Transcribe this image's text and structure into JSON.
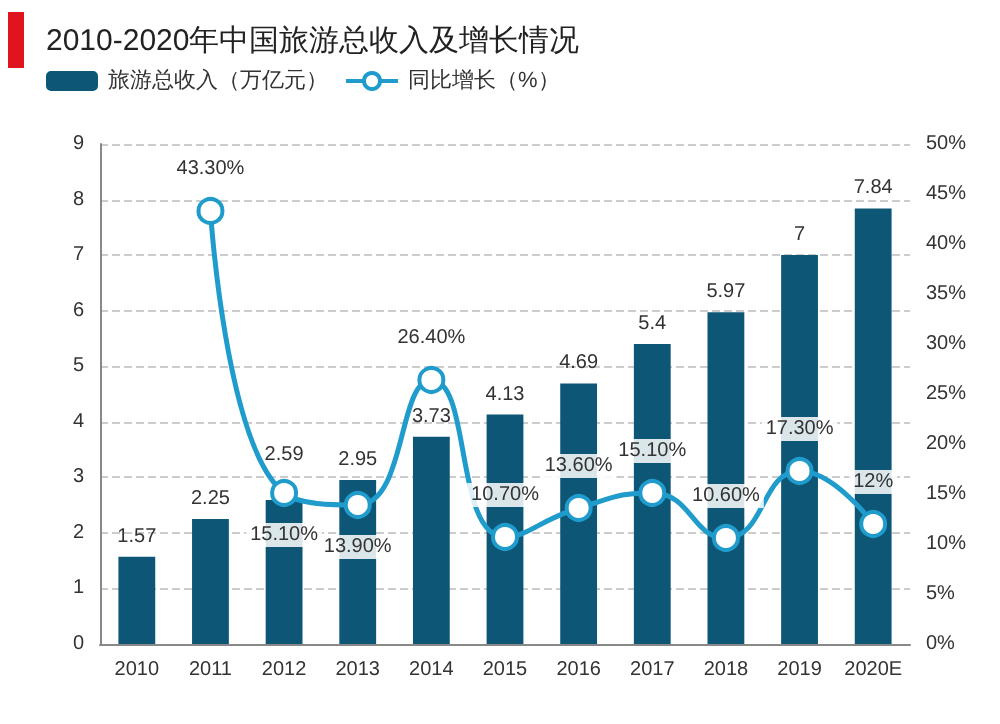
{
  "chart_data": {
    "type": "bar",
    "title": "2010-2020年中国旅游总收入及增长情况",
    "categories": [
      "2010",
      "2011",
      "2012",
      "2013",
      "2014",
      "2015",
      "2016",
      "2017",
      "2018",
      "2019",
      "2020E"
    ],
    "series": [
      {
        "name": "旅游总收入（万亿元）",
        "color": "#0d5676",
        "values": [
          1.57,
          2.25,
          2.59,
          2.95,
          3.73,
          4.13,
          4.69,
          5.4,
          5.97,
          7,
          7.84
        ],
        "value_labels": [
          "1.57",
          "2.25",
          "2.59",
          "2.95",
          "3.73",
          "4.13",
          "4.69",
          "5.4",
          "5.97",
          "7",
          "7.84"
        ]
      },
      {
        "name": "同比增长（%）",
        "type": "line",
        "axis": "y2",
        "color": "#1f9ccc",
        "marker": "circle",
        "values": [
          null,
          43.3,
          15.1,
          13.9,
          26.4,
          10.7,
          13.6,
          15.1,
          10.6,
          17.3,
          12
        ],
        "value_labels": [
          null,
          "43.30%",
          "15.10%",
          "13.90%",
          "26.40%",
          "10.70%",
          "13.60%",
          "15.10%",
          "10.60%",
          "17.30%",
          "12%"
        ]
      }
    ],
    "ylim": [
      0,
      9
    ],
    "yticks": [
      0,
      1,
      2,
      3,
      4,
      5,
      6,
      7,
      8,
      9
    ],
    "y2lim": [
      0,
      50
    ],
    "y2ticks": [
      {
        "value": 0,
        "label": "0%"
      },
      {
        "value": 5,
        "label": "5%"
      },
      {
        "value": 10,
        "label": "10%"
      },
      {
        "value": 15,
        "label": "15%"
      },
      {
        "value": 20,
        "label": "20%"
      },
      {
        "value": 25,
        "label": "25%"
      },
      {
        "value": 30,
        "label": "30%"
      },
      {
        "value": 35,
        "label": "35%"
      },
      {
        "value": 40,
        "label": "40%"
      },
      {
        "value": 45,
        "label": "45%"
      },
      {
        "value": 50,
        "label": "50%"
      }
    ],
    "grid": "y",
    "legend": "top left"
  }
}
